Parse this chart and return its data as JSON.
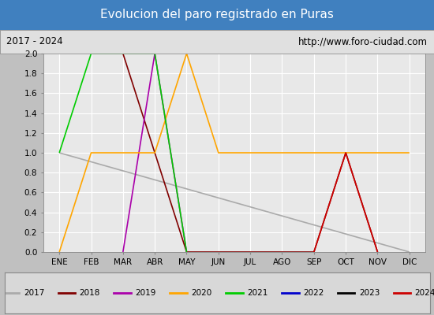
{
  "title": "Evolucion del paro registrado en Puras",
  "subtitle_left": "2017 - 2024",
  "subtitle_right": "http://www.foro-ciudad.com",
  "title_bg_color": "#4080bf",
  "title_text_color": "white",
  "subtitle_bg_color": "#e0e0e0",
  "plot_bg_color": "#e8e8e8",
  "months": [
    1,
    2,
    3,
    4,
    5,
    6,
    7,
    8,
    9,
    10,
    11,
    12
  ],
  "month_labels": [
    "ENE",
    "FEB",
    "MAR",
    "ABR",
    "MAY",
    "JUN",
    "JUL",
    "AGO",
    "SEP",
    "OCT",
    "NOV",
    "DIC"
  ],
  "ylim": [
    0.0,
    2.0
  ],
  "yticks": [
    0.0,
    0.2,
    0.4,
    0.6,
    0.8,
    1.0,
    1.2,
    1.4,
    1.6,
    1.8,
    2.0
  ],
  "series": {
    "2017": {
      "color": "#aaaaaa",
      "data": [
        [
          1,
          1
        ],
        [
          12,
          0
        ]
      ]
    },
    "2018": {
      "color": "#800000",
      "data": [
        [
          3,
          2
        ],
        [
          5,
          0
        ],
        [
          9,
          0
        ],
        [
          10,
          1
        ],
        [
          11,
          0
        ]
      ]
    },
    "2019": {
      "color": "#aa00aa",
      "data": [
        [
          3,
          0
        ],
        [
          4,
          2
        ],
        [
          5,
          0
        ]
      ]
    },
    "2020": {
      "color": "#ffa500",
      "data": [
        [
          1,
          0
        ],
        [
          2,
          1
        ],
        [
          3,
          1
        ],
        [
          4,
          1
        ],
        [
          5,
          2
        ],
        [
          6,
          1
        ],
        [
          7,
          1
        ],
        [
          8,
          1
        ],
        [
          9,
          1
        ],
        [
          10,
          1
        ],
        [
          11,
          1
        ],
        [
          12,
          1
        ]
      ]
    },
    "2021": {
      "color": "#00cc00",
      "data": [
        [
          1,
          1
        ],
        [
          2,
          2
        ],
        [
          3,
          2
        ],
        [
          4,
          2
        ],
        [
          5,
          0
        ]
      ]
    },
    "2022": {
      "color": "#0000cc",
      "data": []
    },
    "2023": {
      "color": "#000000",
      "data": []
    },
    "2024": {
      "color": "#cc0000",
      "data": [
        [
          9,
          0
        ],
        [
          10,
          1
        ],
        [
          11,
          0
        ]
      ]
    }
  },
  "legend_order": [
    "2017",
    "2018",
    "2019",
    "2020",
    "2021",
    "2022",
    "2023",
    "2024"
  ],
  "legend_colors": {
    "2017": "#aaaaaa",
    "2018": "#800000",
    "2019": "#aa00aa",
    "2020": "#ffa500",
    "2021": "#00cc00",
    "2022": "#0000cc",
    "2023": "#000000",
    "2024": "#cc0000"
  },
  "fig_width": 5.5,
  "fig_height": 4.0,
  "fig_dpi": 100
}
